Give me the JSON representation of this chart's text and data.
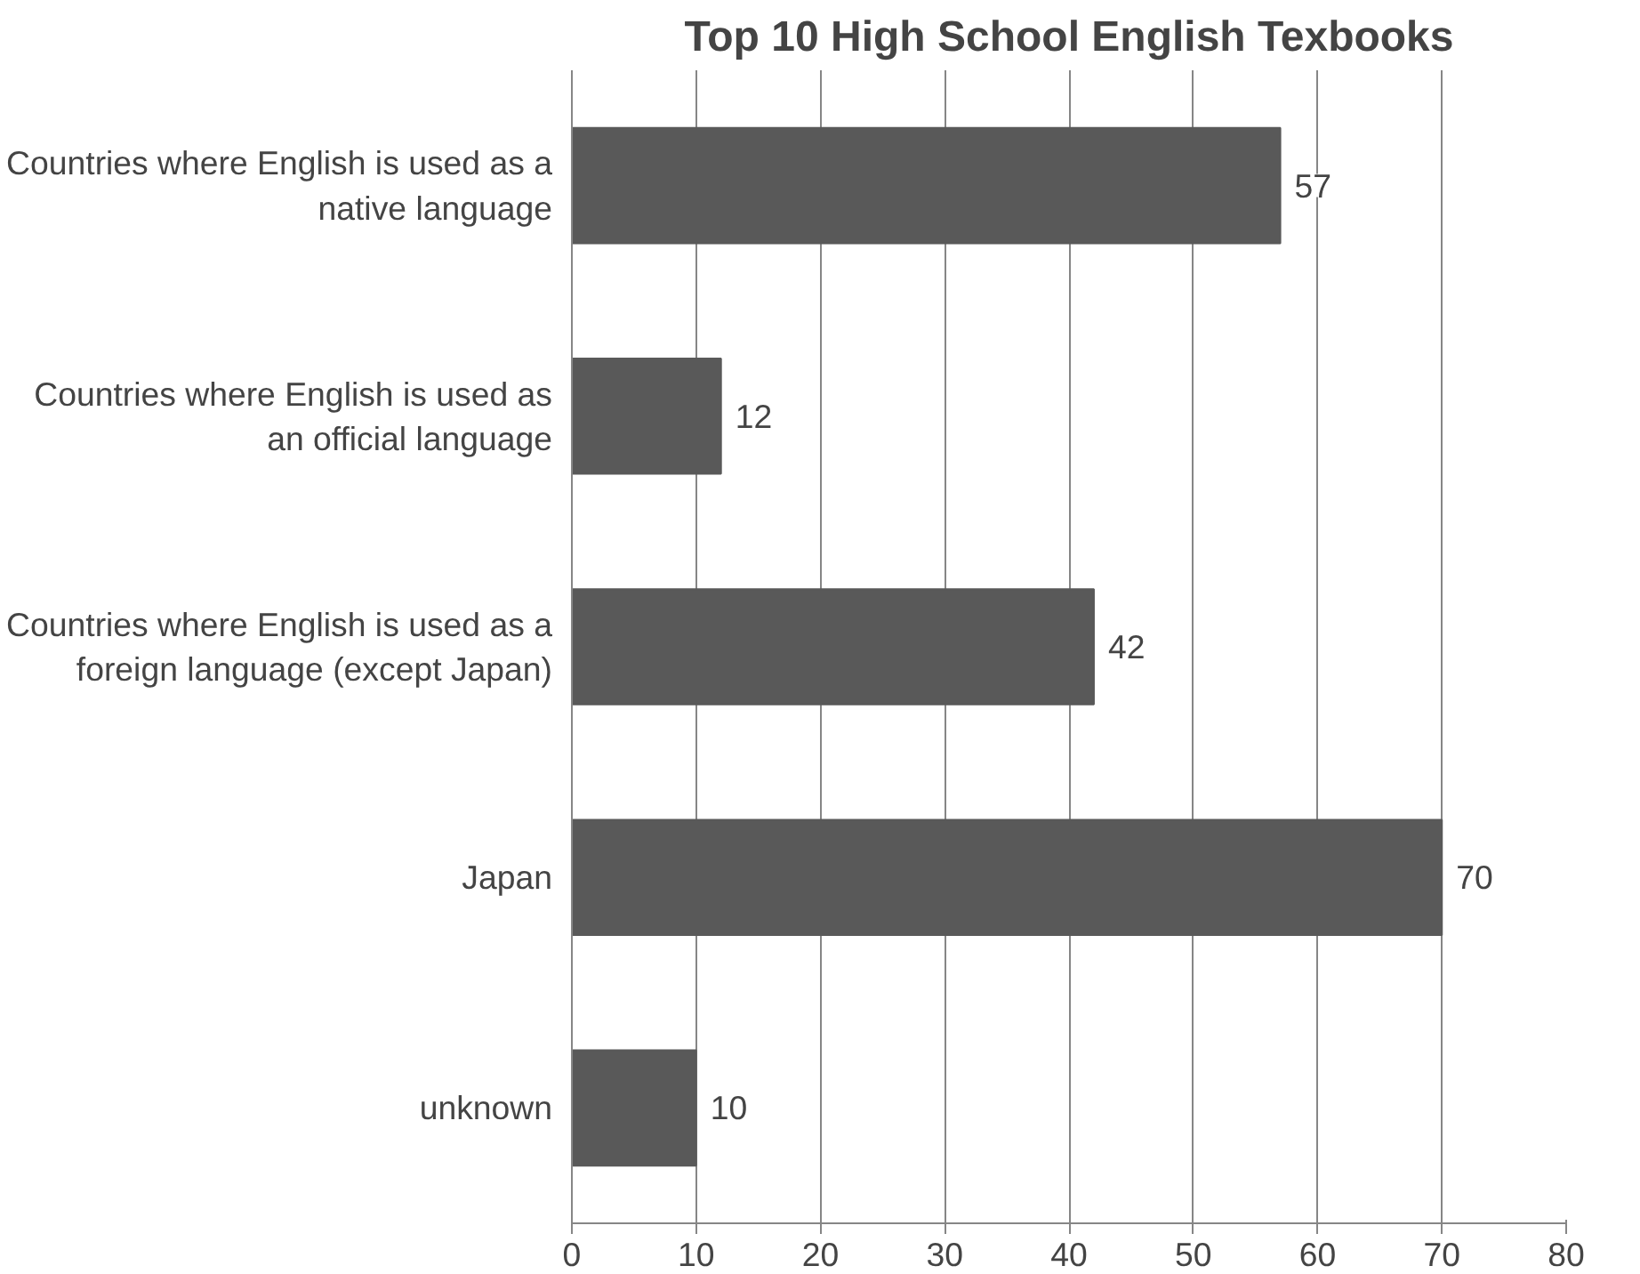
{
  "chart_data": {
    "type": "bar",
    "orientation": "horizontal",
    "title": "Top 10 High School English Texbooks",
    "categories": [
      "Countries where English is used as a native language",
      "Countries where English is used as an official language",
      "Countries where English is used as a foreign language (except Japan)",
      "Japan",
      "unknown"
    ],
    "values": [
      57,
      12,
      42,
      70,
      10
    ],
    "color": "#595959",
    "xlim": [
      0,
      80
    ],
    "xticks": [
      0,
      10,
      20,
      30,
      40,
      50,
      60,
      70,
      80
    ],
    "grid": "x",
    "data_labels": true
  }
}
